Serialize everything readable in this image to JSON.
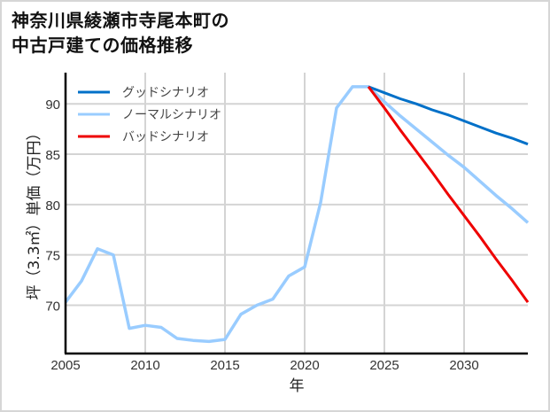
{
  "title": {
    "line1": "神奈川県綾瀬市寺尾本町の",
    "line2": "中古戸建ての価格推移"
  },
  "colors": {
    "good": "#0070C8",
    "normal": "#99CCFF",
    "bad": "#EE0000",
    "grid": "#d4d4d4",
    "axis": "#000000"
  },
  "chart_data": {
    "type": "line",
    "title": "神奈川県綾瀬市寺尾本町の中古戸建ての価格推移",
    "xlabel": "年",
    "ylabel": "坪（3.3㎡）単価（万円）",
    "xlim": [
      2005,
      2034
    ],
    "ylim": [
      65.2,
      93.1
    ],
    "xticks": [
      2005,
      2010,
      2015,
      2020,
      2025,
      2030
    ],
    "yticks": [
      70,
      75,
      80,
      85,
      90
    ],
    "grid": true,
    "legend_position": "upper left",
    "series": [
      {
        "name": "グッドシナリオ",
        "color": "#0070C8",
        "x": [
          2024,
          2025,
          2026,
          2027,
          2028,
          2029,
          2030,
          2031,
          2032,
          2033,
          2034
        ],
        "y": [
          91.7,
          91.1,
          90.5,
          90.0,
          89.4,
          88.9,
          88.3,
          87.7,
          87.1,
          86.6,
          86.0
        ]
      },
      {
        "name": "ノーマルシナリオ",
        "color": "#99CCFF",
        "x": [
          2005,
          2006,
          2007,
          2008,
          2009,
          2010,
          2011,
          2012,
          2013,
          2014,
          2015,
          2016,
          2017,
          2018,
          2019,
          2020,
          2021,
          2022,
          2023,
          2024,
          2025,
          2026,
          2027,
          2028,
          2029,
          2030,
          2031,
          2032,
          2033,
          2034
        ],
        "y": [
          70.3,
          72.4,
          75.6,
          75.0,
          67.7,
          68.0,
          67.8,
          66.7,
          66.5,
          66.4,
          66.6,
          69.1,
          70.0,
          70.6,
          72.9,
          73.8,
          80.2,
          89.6,
          91.7,
          91.7,
          90.2,
          88.8,
          87.5,
          86.2,
          84.9,
          83.7,
          82.3,
          80.9,
          79.6,
          78.2
        ]
      },
      {
        "name": "バッドシナリオ",
        "color": "#EE0000",
        "x": [
          2024,
          2025,
          2026,
          2027,
          2028,
          2029,
          2030,
          2031,
          2032,
          2033,
          2034
        ],
        "y": [
          91.7,
          89.6,
          87.4,
          85.3,
          83.2,
          81.0,
          78.9,
          76.8,
          74.6,
          72.5,
          70.3
        ]
      }
    ]
  },
  "legend": [
    {
      "label": "グッドシナリオ",
      "color": "#0070C8"
    },
    {
      "label": "ノーマルシナリオ",
      "color": "#99CCFF"
    },
    {
      "label": "バッドシナリオ",
      "color": "#EE0000"
    }
  ],
  "axes": {
    "x_title": "年",
    "y_title": "坪（3.3㎡）単価（万円）",
    "x_ticks": [
      "2005",
      "2010",
      "2015",
      "2020",
      "2025",
      "2030"
    ],
    "y_ticks": [
      "70",
      "75",
      "80",
      "85",
      "90"
    ]
  }
}
